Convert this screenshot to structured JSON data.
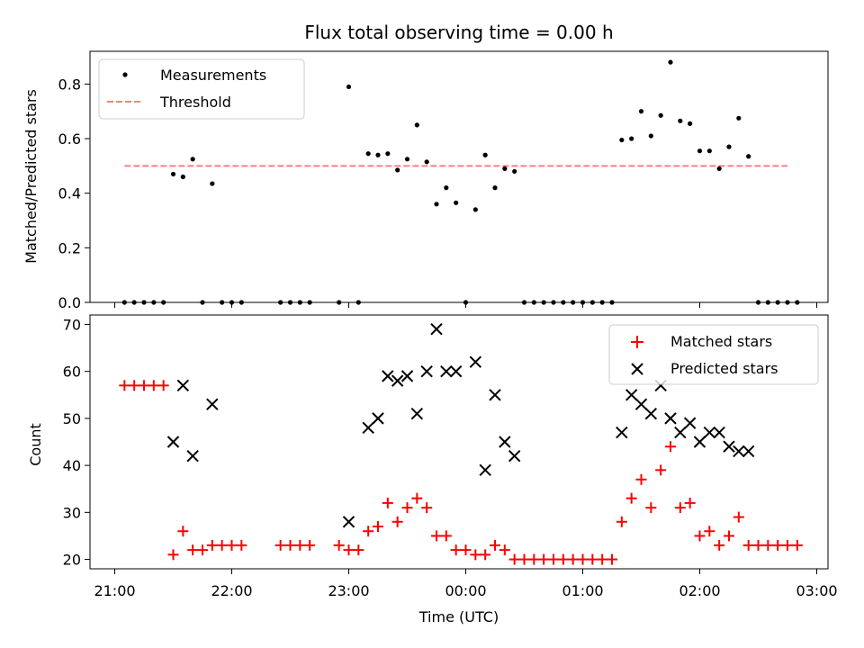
{
  "title": "Flux total observing time = 0.00 h",
  "colors": {
    "measurements": "#000000",
    "threshold": "#ff7f7f",
    "matched": "#ff0000",
    "predicted": "#000000"
  },
  "chart_data": [
    {
      "type": "scatter",
      "ylabel": "Matched/Predicted stars",
      "ylim": [
        0,
        0.92
      ],
      "yticks": [
        "0.0",
        "0.2",
        "0.4",
        "0.6",
        "0.8"
      ],
      "legend": {
        "placement": "upper-left",
        "entries": [
          "Measurements",
          "Threshold"
        ]
      },
      "threshold": {
        "name": "Threshold",
        "y": 0.5,
        "x_start": "21:05",
        "x_end": "02:45"
      },
      "series": [
        {
          "name": "Measurements",
          "marker": "dot",
          "points": [
            [
              "21:05",
              0
            ],
            [
              "21:10",
              0
            ],
            [
              "21:15",
              0
            ],
            [
              "21:20",
              0
            ],
            [
              "21:25",
              0
            ],
            [
              "21:30",
              0.47
            ],
            [
              "21:35",
              0.46
            ],
            [
              "21:40",
              0.525
            ],
            [
              "21:45",
              0
            ],
            [
              "21:50",
              0.435
            ],
            [
              "21:55",
              0
            ],
            [
              "22:00",
              0
            ],
            [
              "22:05",
              0
            ],
            [
              "22:25",
              0
            ],
            [
              "22:30",
              0
            ],
            [
              "22:35",
              0
            ],
            [
              "22:40",
              0
            ],
            [
              "22:55",
              0
            ],
            [
              "23:00",
              0.79
            ],
            [
              "23:05",
              0
            ],
            [
              "23:10",
              0.545
            ],
            [
              "23:15",
              0.54
            ],
            [
              "23:20",
              0.545
            ],
            [
              "23:25",
              0.485
            ],
            [
              "23:30",
              0.525
            ],
            [
              "23:35",
              0.65
            ],
            [
              "23:40",
              0.515
            ],
            [
              "23:45",
              0.36
            ],
            [
              "23:50",
              0.42
            ],
            [
              "23:55",
              0.365
            ],
            [
              "00:00",
              0
            ],
            [
              "00:05",
              0.34
            ],
            [
              "00:10",
              0.54
            ],
            [
              "00:15",
              0.42
            ],
            [
              "00:20",
              0.49
            ],
            [
              "00:25",
              0.48
            ],
            [
              "00:30",
              0
            ],
            [
              "00:35",
              0
            ],
            [
              "00:40",
              0
            ],
            [
              "00:45",
              0
            ],
            [
              "00:50",
              0
            ],
            [
              "00:55",
              0
            ],
            [
              "01:00",
              0
            ],
            [
              "01:05",
              0
            ],
            [
              "01:10",
              0
            ],
            [
              "01:15",
              0
            ],
            [
              "01:20",
              0.595
            ],
            [
              "01:25",
              0.6
            ],
            [
              "01:30",
              0.7
            ],
            [
              "01:35",
              0.61
            ],
            [
              "01:40",
              0.685
            ],
            [
              "01:45",
              0.88
            ],
            [
              "01:50",
              0.665
            ],
            [
              "01:55",
              0.655
            ],
            [
              "02:00",
              0.555
            ],
            [
              "02:05",
              0.555
            ],
            [
              "02:10",
              0.49
            ],
            [
              "02:15",
              0.57
            ],
            [
              "02:20",
              0.675
            ],
            [
              "02:25",
              0.535
            ],
            [
              "02:30",
              0
            ],
            [
              "02:35",
              0
            ],
            [
              "02:40",
              0
            ],
            [
              "02:45",
              0
            ],
            [
              "02:50",
              0
            ]
          ]
        }
      ]
    },
    {
      "type": "scatter",
      "xlabel": "Time (UTC)",
      "ylabel": "Count",
      "ylim": [
        18,
        72
      ],
      "yticks": [
        "20",
        "30",
        "40",
        "50",
        "60",
        "70"
      ],
      "xticks": [
        "21:00",
        "22:00",
        "23:00",
        "00:00",
        "01:00",
        "02:00",
        "03:00"
      ],
      "legend": {
        "placement": "upper-right",
        "entries": [
          "Matched stars",
          "Predicted stars"
        ]
      },
      "series": [
        {
          "name": "Matched stars",
          "marker": "plus",
          "points": [
            [
              "21:05",
              57
            ],
            [
              "21:10",
              57
            ],
            [
              "21:15",
              57
            ],
            [
              "21:20",
              57
            ],
            [
              "21:25",
              57
            ],
            [
              "21:30",
              21
            ],
            [
              "21:35",
              26
            ],
            [
              "21:40",
              22
            ],
            [
              "21:45",
              22
            ],
            [
              "21:50",
              23
            ],
            [
              "21:55",
              23
            ],
            [
              "22:00",
              23
            ],
            [
              "22:05",
              23
            ],
            [
              "22:25",
              23
            ],
            [
              "22:30",
              23
            ],
            [
              "22:35",
              23
            ],
            [
              "22:40",
              23
            ],
            [
              "22:55",
              23
            ],
            [
              "23:00",
              22
            ],
            [
              "23:05",
              22
            ],
            [
              "23:10",
              26
            ],
            [
              "23:15",
              27
            ],
            [
              "23:20",
              32
            ],
            [
              "23:25",
              28
            ],
            [
              "23:30",
              31
            ],
            [
              "23:35",
              33
            ],
            [
              "23:40",
              31
            ],
            [
              "23:45",
              25
            ],
            [
              "23:50",
              25
            ],
            [
              "23:55",
              22
            ],
            [
              "00:00",
              22
            ],
            [
              "00:05",
              21
            ],
            [
              "00:10",
              21
            ],
            [
              "00:15",
              23
            ],
            [
              "00:20",
              22
            ],
            [
              "00:25",
              20
            ],
            [
              "00:30",
              20
            ],
            [
              "00:35",
              20
            ],
            [
              "00:40",
              20
            ],
            [
              "00:45",
              20
            ],
            [
              "00:50",
              20
            ],
            [
              "00:55",
              20
            ],
            [
              "01:00",
              20
            ],
            [
              "01:05",
              20
            ],
            [
              "01:10",
              20
            ],
            [
              "01:15",
              20
            ],
            [
              "01:20",
              28
            ],
            [
              "01:25",
              33
            ],
            [
              "01:30",
              37
            ],
            [
              "01:35",
              31
            ],
            [
              "01:40",
              39
            ],
            [
              "01:45",
              44
            ],
            [
              "01:50",
              31
            ],
            [
              "01:55",
              32
            ],
            [
              "02:00",
              25
            ],
            [
              "02:05",
              26
            ],
            [
              "02:10",
              23
            ],
            [
              "02:15",
              25
            ],
            [
              "02:20",
              29
            ],
            [
              "02:25",
              23
            ],
            [
              "02:30",
              23
            ],
            [
              "02:35",
              23
            ],
            [
              "02:40",
              23
            ],
            [
              "02:45",
              23
            ],
            [
              "02:50",
              23
            ]
          ]
        },
        {
          "name": "Predicted stars",
          "marker": "x",
          "points": [
            [
              "21:30",
              45
            ],
            [
              "21:35",
              57
            ],
            [
              "21:40",
              42
            ],
            [
              "21:50",
              53
            ],
            [
              "23:00",
              28
            ],
            [
              "23:10",
              48
            ],
            [
              "23:15",
              50
            ],
            [
              "23:20",
              59
            ],
            [
              "23:25",
              58
            ],
            [
              "23:30",
              59
            ],
            [
              "23:35",
              51
            ],
            [
              "23:40",
              60
            ],
            [
              "23:45",
              69
            ],
            [
              "23:50",
              60
            ],
            [
              "23:55",
              60
            ],
            [
              "00:05",
              62
            ],
            [
              "00:10",
              39
            ],
            [
              "00:15",
              55
            ],
            [
              "00:20",
              45
            ],
            [
              "00:25",
              42
            ],
            [
              "01:20",
              47
            ],
            [
              "01:25",
              55
            ],
            [
              "01:30",
              53
            ],
            [
              "01:35",
              51
            ],
            [
              "01:40",
              57
            ],
            [
              "01:45",
              50
            ],
            [
              "01:50",
              47
            ],
            [
              "01:55",
              49
            ],
            [
              "02:00",
              45
            ],
            [
              "02:05",
              47
            ],
            [
              "02:10",
              47
            ],
            [
              "02:15",
              44
            ],
            [
              "02:20",
              43
            ],
            [
              "02:25",
              43
            ]
          ]
        }
      ]
    }
  ]
}
